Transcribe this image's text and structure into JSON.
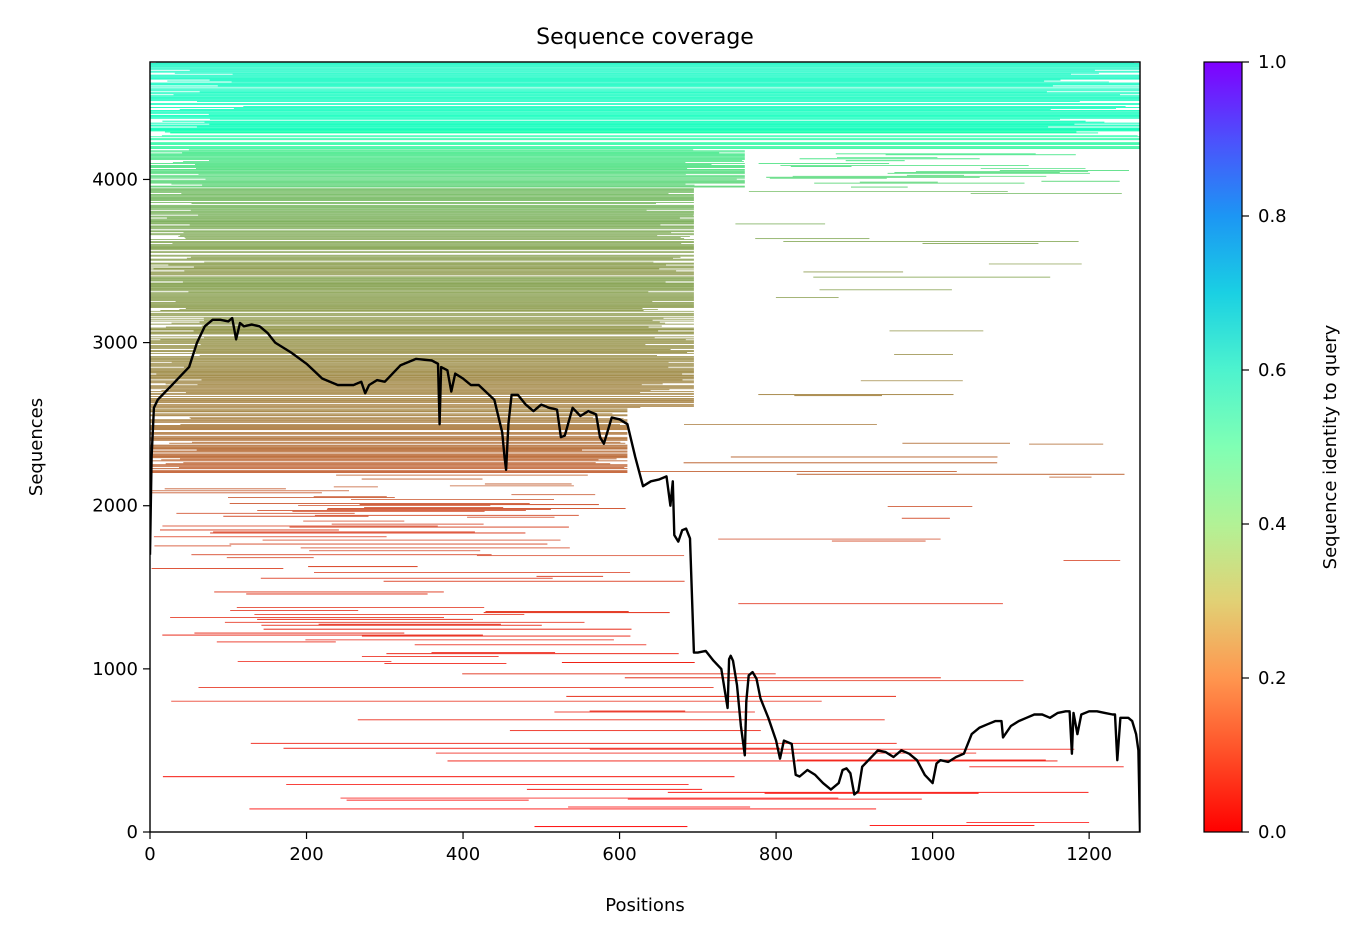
{
  "chart_data": {
    "type": "heatmap",
    "title": "Sequence coverage",
    "xlabel": "Positions",
    "ylabel": "Sequences",
    "xlim": [
      0,
      1265
    ],
    "ylim": [
      0,
      4720
    ],
    "xticks": [
      0,
      200,
      400,
      600,
      800,
      1000,
      1200
    ],
    "yticks": [
      0,
      1000,
      2000,
      3000,
      4000
    ],
    "grid": false,
    "colorbar": {
      "label": "Sequence identity to query",
      "range": [
        0,
        1
      ],
      "ticks": [
        "0.0",
        "0.2",
        "0.4",
        "0.6",
        "0.8",
        "1.0"
      ],
      "colormap": "rainbow_r"
    },
    "heatmap_bands": [
      {
        "y0": 4300,
        "y1": 4720,
        "x0": 0,
        "x1": 1265,
        "identity": 0.55,
        "density": 0.96
      },
      {
        "y0": 4180,
        "y1": 4300,
        "x0": 0,
        "x1": 1265,
        "identity": 0.44,
        "density": 0.85
      },
      {
        "y0": 3950,
        "y1": 4180,
        "x0": 0,
        "x1": 760,
        "identity": 0.34,
        "density": 0.93
      },
      {
        "y0": 3950,
        "y1": 4180,
        "x0": 760,
        "x1": 1265,
        "identity": 0.34,
        "density": 0.5
      },
      {
        "y0": 3400,
        "y1": 3950,
        "x0": 0,
        "x1": 695,
        "identity": 0.24,
        "density": 0.92
      },
      {
        "y0": 3400,
        "y1": 3950,
        "x0": 695,
        "x1": 1265,
        "identity": 0.24,
        "density": 0.08
      },
      {
        "y0": 2600,
        "y1": 3400,
        "x0": 0,
        "x1": 695,
        "identity": 0.2,
        "density": 0.9
      },
      {
        "y0": 2600,
        "y1": 3400,
        "x0": 695,
        "x1": 1265,
        "identity": 0.2,
        "density": 0.06
      },
      {
        "y0": 2200,
        "y1": 2600,
        "x0": 0,
        "x1": 610,
        "identity": 0.15,
        "density": 0.8
      },
      {
        "y0": 2200,
        "y1": 2600,
        "x0": 610,
        "x1": 1265,
        "identity": 0.15,
        "density": 0.12
      },
      {
        "y0": 1800,
        "y1": 2200,
        "x0": 0,
        "x1": 620,
        "identity": 0.1,
        "density": 0.5
      },
      {
        "y0": 1800,
        "y1": 2200,
        "x0": 620,
        "x1": 1265,
        "identity": 0.1,
        "density": 0.06
      },
      {
        "y0": 1000,
        "y1": 1800,
        "x0": 0,
        "x1": 700,
        "identity": 0.06,
        "density": 0.3
      },
      {
        "y0": 1000,
        "y1": 1800,
        "x0": 700,
        "x1": 1265,
        "identity": 0.06,
        "density": 0.04
      },
      {
        "y0": 0,
        "y1": 1000,
        "x0": 0,
        "x1": 1265,
        "identity": 0.03,
        "density": 0.15
      }
    ],
    "coverage_line": {
      "color": "#000000",
      "x": [
        0,
        2,
        5,
        10,
        20,
        30,
        40,
        50,
        60,
        70,
        80,
        90,
        100,
        105,
        110,
        115,
        120,
        130,
        140,
        150,
        160,
        180,
        200,
        220,
        240,
        260,
        270,
        275,
        280,
        290,
        300,
        320,
        340,
        360,
        368,
        370,
        372,
        380,
        385,
        390,
        400,
        410,
        420,
        440,
        450,
        453,
        455,
        458,
        462,
        470,
        480,
        490,
        500,
        510,
        520,
        525,
        530,
        540,
        550,
        560,
        570,
        575,
        580,
        590,
        600,
        610,
        620,
        630,
        640,
        650,
        660,
        665,
        668,
        670,
        675,
        680,
        685,
        690,
        695,
        700,
        710,
        720,
        730,
        738,
        740,
        742,
        745,
        750,
        755,
        760,
        762,
        765,
        770,
        775,
        780,
        790,
        800,
        805,
        810,
        820,
        825,
        830,
        840,
        850,
        860,
        870,
        880,
        885,
        890,
        895,
        900,
        905,
        910,
        920,
        930,
        940,
        950,
        960,
        970,
        980,
        990,
        1000,
        1005,
        1010,
        1020,
        1030,
        1040,
        1050,
        1060,
        1070,
        1080,
        1085,
        1088,
        1090,
        1100,
        1110,
        1120,
        1130,
        1140,
        1150,
        1160,
        1170,
        1175,
        1178,
        1180,
        1185,
        1190,
        1200,
        1210,
        1220,
        1230,
        1233,
        1236,
        1240,
        1250,
        1255,
        1260,
        1263,
        1265
      ],
      "y": [
        1700,
        2300,
        2600,
        2650,
        2700,
        2750,
        2800,
        2850,
        3000,
        3100,
        3140,
        3140,
        3130,
        3150,
        3020,
        3120,
        3100,
        3110,
        3100,
        3060,
        3000,
        2940,
        2870,
        2780,
        2740,
        2740,
        2760,
        2690,
        2740,
        2770,
        2760,
        2860,
        2900,
        2890,
        2870,
        2500,
        2850,
        2830,
        2700,
        2810,
        2780,
        2740,
        2740,
        2650,
        2450,
        2300,
        2220,
        2500,
        2680,
        2680,
        2620,
        2580,
        2620,
        2600,
        2590,
        2420,
        2430,
        2600,
        2550,
        2580,
        2560,
        2420,
        2380,
        2540,
        2530,
        2500,
        2300,
        2120,
        2150,
        2160,
        2180,
        2000,
        2150,
        1820,
        1780,
        1850,
        1860,
        1800,
        1100,
        1100,
        1110,
        1050,
        1000,
        760,
        1060,
        1080,
        1050,
        900,
        650,
        470,
        800,
        960,
        980,
        940,
        820,
        700,
        560,
        450,
        560,
        540,
        350,
        340,
        380,
        350,
        300,
        260,
        300,
        380,
        390,
        360,
        230,
        250,
        400,
        450,
        500,
        490,
        460,
        500,
        480,
        440,
        350,
        300,
        420,
        440,
        430,
        460,
        480,
        600,
        640,
        660,
        680,
        680,
        680,
        580,
        650,
        680,
        700,
        720,
        720,
        700,
        730,
        740,
        740,
        480,
        730,
        600,
        720,
        740,
        740,
        730,
        720,
        720,
        440,
        700,
        700,
        680,
        600,
        500,
        0
      ]
    }
  }
}
